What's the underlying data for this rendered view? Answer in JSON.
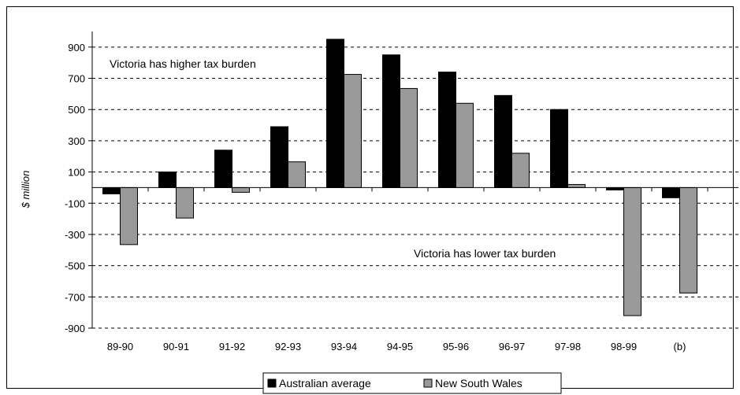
{
  "chart_data": {
    "type": "bar",
    "title": "",
    "xlabel": "",
    "ylabel": "$ million",
    "ylim": [
      -900,
      1000
    ],
    "yticks": [
      900,
      700,
      500,
      300,
      100,
      -100,
      -300,
      -500,
      -700,
      -900
    ],
    "grid": true,
    "legend_position": "bottom",
    "categories": [
      "89-90",
      "90-91",
      "91-92",
      "92-93",
      "93-94",
      "94-95",
      "95-96",
      "96-97",
      "97-98",
      "98-99",
      "(b)"
    ],
    "series": [
      {
        "name": "Australian average",
        "color": "#000000",
        "values": [
          -40,
          100,
          240,
          390,
          950,
          850,
          740,
          590,
          500,
          -15,
          -65
        ]
      },
      {
        "name": "New South Wales",
        "color": "#999999",
        "values": [
          -365,
          -195,
          -30,
          165,
          725,
          635,
          540,
          220,
          20,
          -820,
          -675
        ]
      }
    ],
    "annotations": [
      {
        "text": "Victoria has higher tax burden"
      },
      {
        "text": "Victoria has lower tax burden"
      }
    ]
  }
}
